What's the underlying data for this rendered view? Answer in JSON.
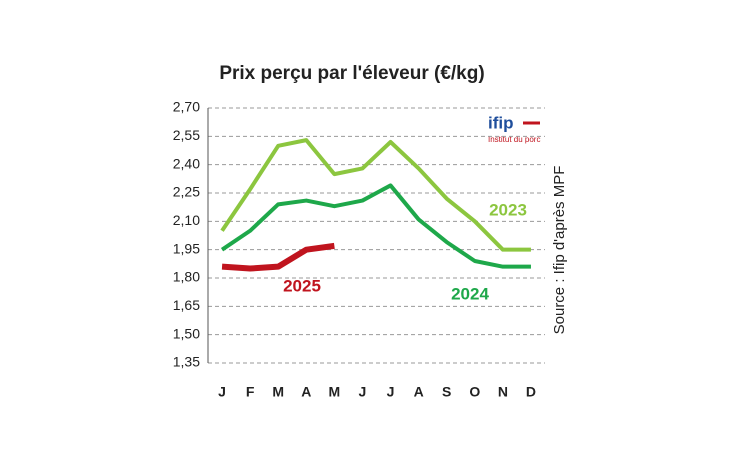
{
  "chart_data": {
    "type": "line",
    "title": "Prix perçu par l'éleveur (€/kg)",
    "categories": [
      "J",
      "F",
      "M",
      "A",
      "M",
      "J",
      "J",
      "A",
      "S",
      "O",
      "N",
      "D"
    ],
    "series": [
      {
        "name": "2023",
        "color": "#8cc63f",
        "values": [
          2.05,
          2.27,
          2.5,
          2.53,
          2.35,
          2.38,
          2.52,
          2.38,
          2.22,
          2.1,
          1.95,
          1.95
        ]
      },
      {
        "name": "2024",
        "color": "#1ea84a",
        "values": [
          1.95,
          2.05,
          2.19,
          2.21,
          2.18,
          2.21,
          2.29,
          2.11,
          1.99,
          1.89,
          1.86,
          1.86
        ]
      },
      {
        "name": "2025",
        "color": "#c0141e",
        "values": [
          1.86,
          1.85,
          1.86,
          1.95,
          1.97,
          null,
          null,
          null,
          null,
          null,
          null,
          null
        ]
      }
    ],
    "ylim": [
      1.35,
      2.7
    ],
    "yticks": [
      {
        "value": 1.35,
        "label": "1,35"
      },
      {
        "value": 1.5,
        "label": "1,50"
      },
      {
        "value": 1.65,
        "label": "1,65"
      },
      {
        "value": 1.8,
        "label": "1,80"
      },
      {
        "value": 1.95,
        "label": "1,95"
      },
      {
        "value": 2.1,
        "label": "2,10"
      },
      {
        "value": 2.25,
        "label": "2,25"
      },
      {
        "value": 2.4,
        "label": "2,40"
      },
      {
        "value": 2.55,
        "label": "2,55"
      },
      {
        "value": 2.7,
        "label": "2,70"
      }
    ],
    "grid": true,
    "source": "Source : Ifip d'après MPF",
    "logo": {
      "name": "ifip",
      "tagline": "Institut du porc"
    }
  }
}
